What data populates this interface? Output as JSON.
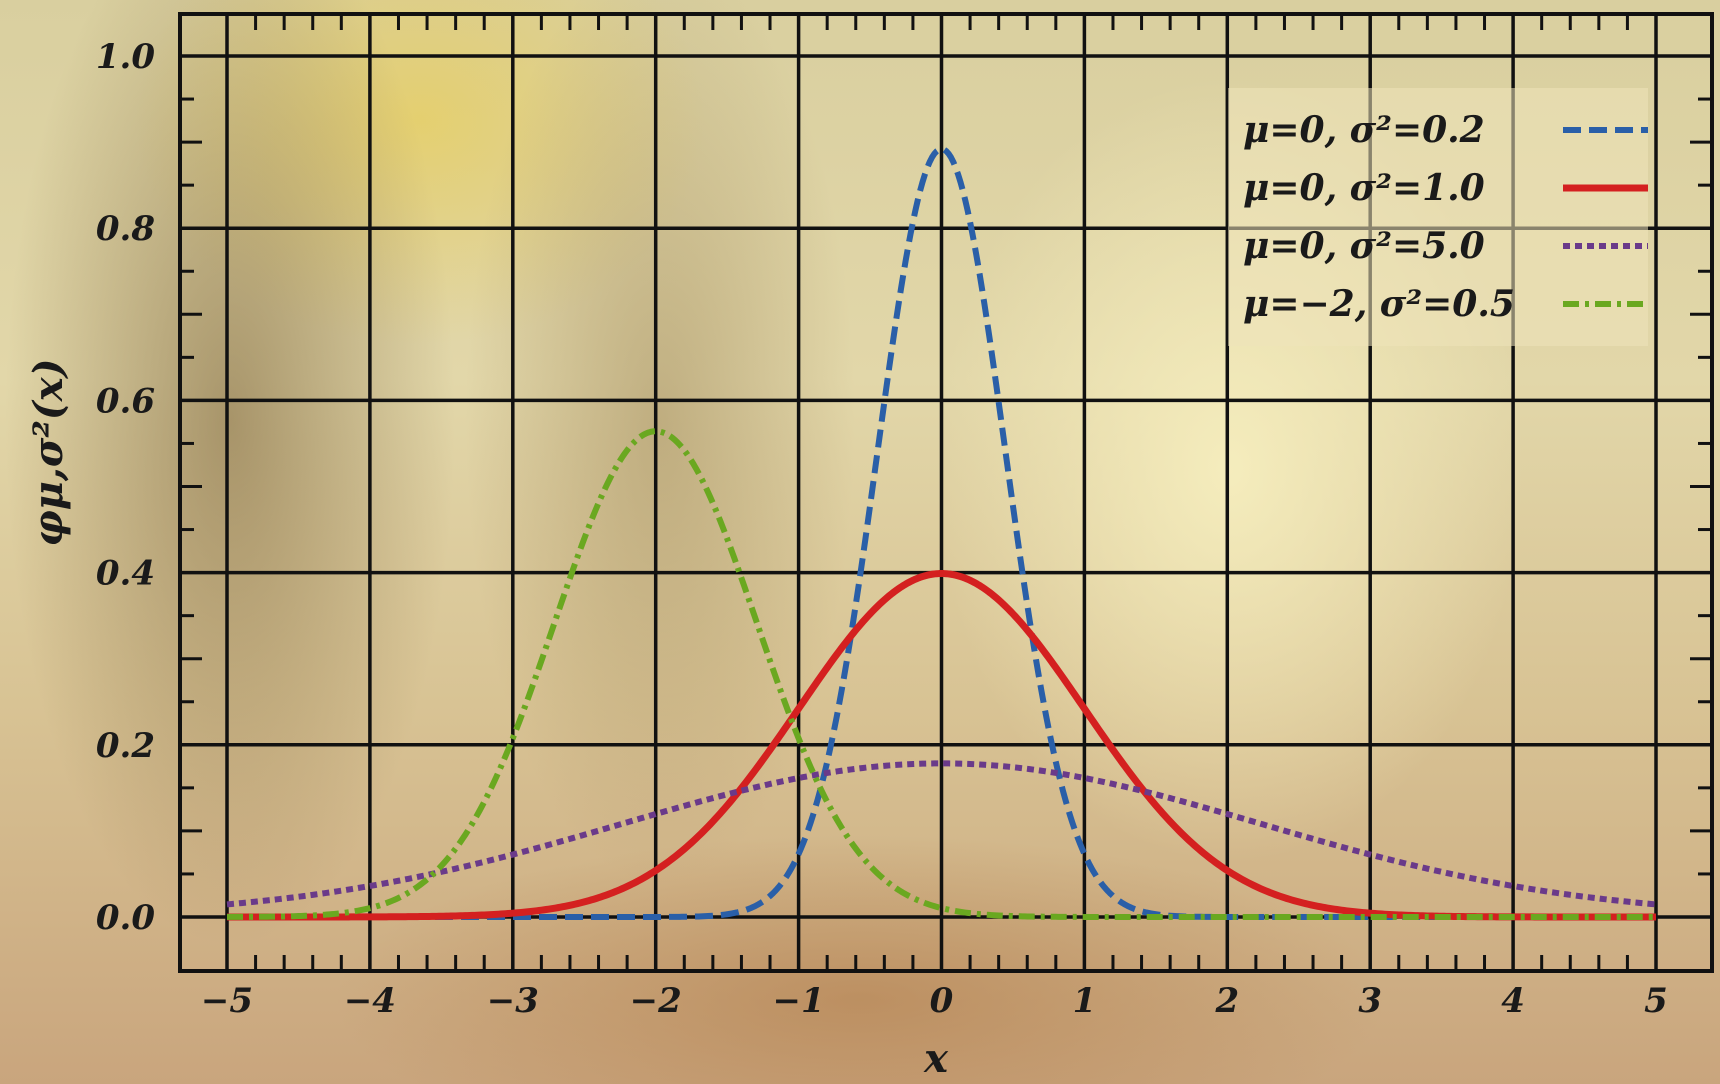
{
  "chart_data": {
    "type": "line",
    "xlabel": "x",
    "ylabel": "φμ,σ²(x)",
    "xlim": [
      -5,
      5
    ],
    "ylim": [
      0.0,
      1.0
    ],
    "x_ticks": [
      "−5",
      "−4",
      "−3",
      "−2",
      "−1",
      "0",
      "1",
      "2",
      "3",
      "4",
      "5"
    ],
    "y_ticks": [
      "0.0",
      "0.2",
      "0.4",
      "0.6",
      "0.8",
      "1.0"
    ],
    "grid": true,
    "legend_position": "top-right",
    "series": [
      {
        "name": "μ=0,   σ²=0.2",
        "mu": 0,
        "variance": 0.2,
        "color": "#2a5fa8",
        "dash": "dashed"
      },
      {
        "name": "μ=0,   σ²=1.0",
        "mu": 0,
        "variance": 1.0,
        "color": "#d42020",
        "dash": "solid"
      },
      {
        "name": "μ=0,   σ²=5.0",
        "mu": 0,
        "variance": 5.0,
        "color": "#6a3a8a",
        "dash": "dotted"
      },
      {
        "name": "μ=−2, σ²=0.5",
        "mu": -2,
        "variance": 0.5,
        "color": "#6aa820",
        "dash": "dashdot"
      }
    ]
  }
}
